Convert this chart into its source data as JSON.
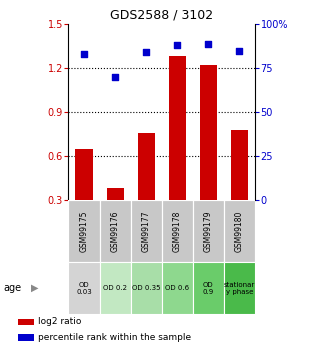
{
  "title": "GDS2588 / 3102",
  "samples": [
    "GSM99175",
    "GSM99176",
    "GSM99177",
    "GSM99178",
    "GSM99179",
    "GSM99180"
  ],
  "log2_ratio": [
    0.65,
    0.38,
    0.76,
    1.28,
    1.22,
    0.78
  ],
  "percentile_rank": [
    83,
    70,
    84,
    88,
    89,
    85
  ],
  "ylim_left": [
    0.3,
    1.5
  ],
  "ylim_right": [
    0,
    100
  ],
  "yticks_left": [
    0.3,
    0.6,
    0.9,
    1.2,
    1.5
  ],
  "yticks_right": [
    0,
    25,
    50,
    75,
    100
  ],
  "ytick_labels_left": [
    "0.3",
    "0.6",
    "0.9",
    "1.2",
    "1.5"
  ],
  "ytick_labels_right": [
    "0",
    "25",
    "50",
    "75",
    "100%"
  ],
  "hlines": [
    0.6,
    0.9,
    1.2
  ],
  "bar_color": "#cc0000",
  "dot_color": "#0000cc",
  "bar_width": 0.55,
  "age_labels": [
    "OD\n0.03",
    "OD 0.2",
    "OD 0.35",
    "OD 0.6",
    "OD\n0.9",
    "stationar\ny phase"
  ],
  "age_bg_colors": [
    "#d4d4d4",
    "#c2e8c2",
    "#a8dea8",
    "#8ed88e",
    "#6acc6a",
    "#4aba4a"
  ],
  "sample_bg_color": "#c8c8c8",
  "legend_red_label": "log2 ratio",
  "legend_blue_label": "percentile rank within the sample",
  "age_row_label": "age",
  "figsize": [
    3.11,
    3.45
  ],
  "dpi": 100
}
